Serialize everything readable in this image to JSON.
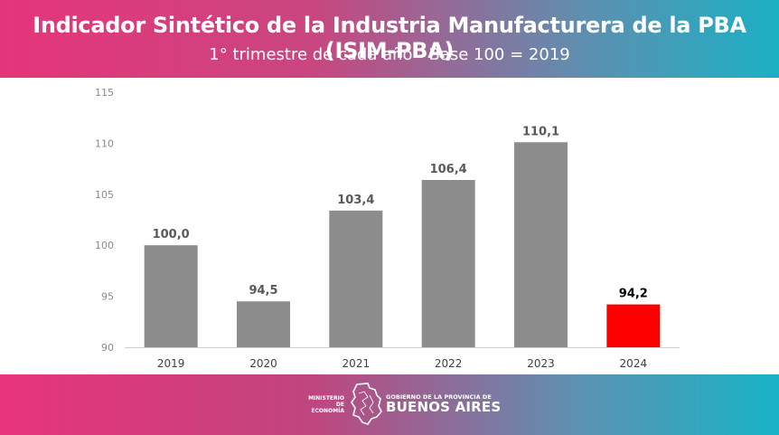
{
  "header": {
    "title": "Indicador Sintético de la Industria Manufacturera de la PBA (ISIM-PBA)",
    "subtitle": "1° trimestre de cada año - Base 100 = 2019"
  },
  "footer": {
    "ministry": "MINISTERIO DE ECONOMÍA",
    "gov_small": "GOBIERNO DE LA PROVINCIA DE",
    "gov_big": "BUENOS AIRES"
  },
  "chart_data": {
    "type": "bar",
    "categories": [
      "2019",
      "2020",
      "2021",
      "2022",
      "2023",
      "2024"
    ],
    "values": [
      100.0,
      94.5,
      103.4,
      106.4,
      110.1,
      94.2
    ],
    "data_labels": [
      "100,0",
      "94,5",
      "103,4",
      "106,4",
      "110,1",
      "94,2"
    ],
    "ylim": [
      90,
      115
    ],
    "yticks": [
      90,
      95,
      100,
      105,
      110,
      115
    ],
    "grid": false,
    "colors": {
      "bar": "#8c8c8c",
      "highlight_bar": "#ff0000",
      "label": "#595959",
      "highlight_label": "#000000"
    },
    "highlight_index": 5
  }
}
